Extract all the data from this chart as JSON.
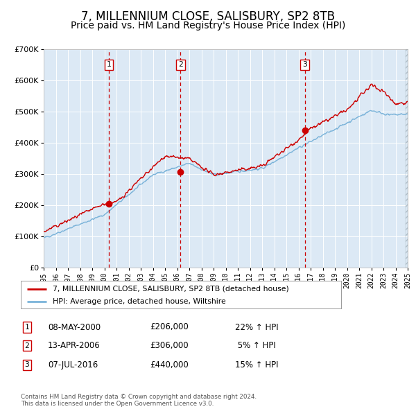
{
  "title": "7, MILLENNIUM CLOSE, SALISBURY, SP2 8TB",
  "subtitle": "Price paid vs. HM Land Registry's House Price Index (HPI)",
  "legend_property": "7, MILLENNIUM CLOSE, SALISBURY, SP2 8TB (detached house)",
  "legend_hpi": "HPI: Average price, detached house, Wiltshire",
  "footer": "Contains HM Land Registry data © Crown copyright and database right 2024.\nThis data is licensed under the Open Government Licence v3.0.",
  "ylim": [
    0,
    700000
  ],
  "yticks": [
    0,
    100000,
    200000,
    300000,
    400000,
    500000,
    600000,
    700000
  ],
  "sale_dates": [
    "08-MAY-2000",
    "13-APR-2006",
    "07-JUL-2016"
  ],
  "sale_prices": [
    206000,
    306000,
    440000
  ],
  "sale_pct": [
    "22%",
    "5%",
    "15%"
  ],
  "sale_labels": [
    "1",
    "2",
    "3"
  ],
  "sale_years": [
    2000.36,
    2006.28,
    2016.52
  ],
  "red_line_color": "#cc0000",
  "blue_line_color": "#7ab3d9",
  "bg_color": "#dce9f5",
  "vline_color": "#cc0000",
  "grid_color": "#ffffff",
  "title_fontsize": 12,
  "subtitle_fontsize": 10,
  "start_year": 1995,
  "end_year": 2025,
  "table_rows": [
    [
      "1",
      "08-MAY-2000",
      "£206,000",
      "22% ↑ HPI"
    ],
    [
      "2",
      "13-APR-2006",
      "£306,000",
      " 5% ↑ HPI"
    ],
    [
      "3",
      "07-JUL-2016",
      "£440,000",
      "15% ↑ HPI"
    ]
  ]
}
